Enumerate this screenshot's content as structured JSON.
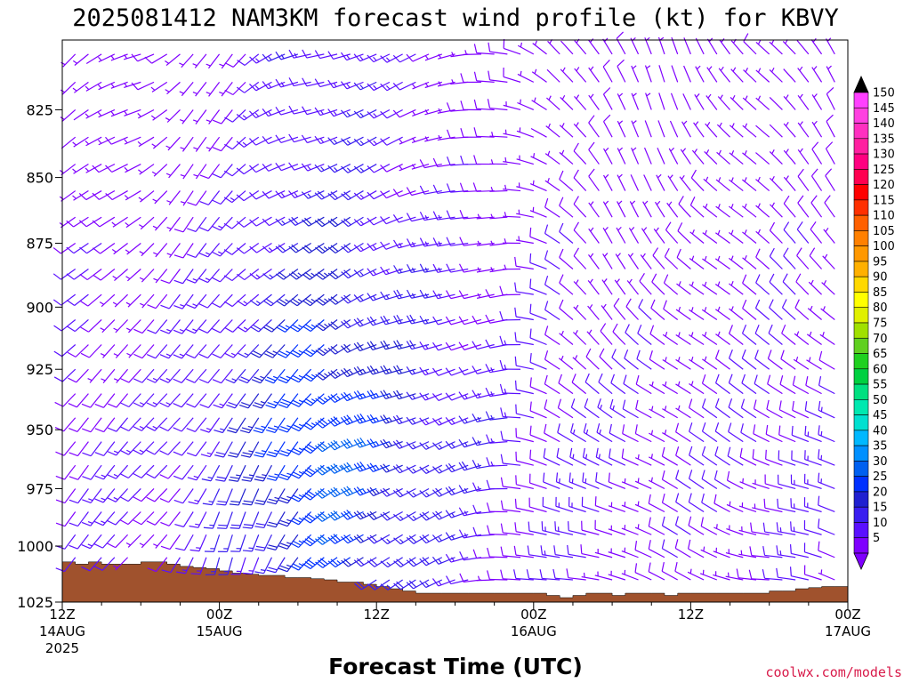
{
  "chart_data": {
    "type": "wind-barb",
    "title": "2025081412 NAM3KM forecast wind profile (kt) for KBVY",
    "xlabel": "Forecast Time (UTC)",
    "ylabel": "",
    "credit": "coolwx.com/models",
    "y_axis": {
      "label": "",
      "scale": "log-pressure",
      "range_hPa": [
        800,
        1025
      ],
      "ticks": [
        825,
        850,
        875,
        900,
        925,
        950,
        975,
        1000,
        1025
      ]
    },
    "x_axis": {
      "start": "2025-08-14T12:00Z",
      "end": "2025-08-17T00:00Z",
      "step_hours": 1,
      "ticks": [
        {
          "hour": 0,
          "label": "12Z",
          "line2": "14AUG",
          "line3": "2025"
        },
        {
          "hour": 12,
          "label": "00Z",
          "line2": "15AUG",
          "line3": ""
        },
        {
          "hour": 24,
          "label": "12Z",
          "line2": "",
          "line3": ""
        },
        {
          "hour": 36,
          "label": "00Z",
          "line2": "16AUG",
          "line3": ""
        },
        {
          "hour": 48,
          "label": "12Z",
          "line2": "",
          "line3": ""
        },
        {
          "hour": 60,
          "label": "00Z",
          "line2": "17AUG",
          "line3": ""
        }
      ]
    },
    "levels_hPa": [
      805,
      815,
      825,
      835,
      845,
      855,
      865,
      875,
      885,
      895,
      905,
      915,
      925,
      935,
      945,
      955,
      965,
      975,
      985,
      995,
      1005,
      1015,
      1025
    ],
    "surface_pressure": {
      "label": "terrain",
      "color": "#a0522d",
      "keyframes_by_hour": [
        [
          0,
          1007
        ],
        [
          1,
          1008
        ],
        [
          2,
          1007
        ],
        [
          3,
          1008
        ],
        [
          5,
          1008
        ],
        [
          6,
          1007
        ],
        [
          7,
          1007
        ],
        [
          8,
          1008
        ],
        [
          9,
          1009
        ],
        [
          11,
          1010
        ],
        [
          12,
          1011
        ],
        [
          13,
          1012
        ],
        [
          15,
          1013
        ],
        [
          16,
          1013
        ],
        [
          17,
          1014
        ],
        [
          18,
          1014
        ],
        [
          20,
          1015
        ],
        [
          21,
          1016
        ],
        [
          22,
          1016
        ],
        [
          23,
          1017
        ],
        [
          24,
          1018
        ],
        [
          25,
          1019
        ],
        [
          26,
          1020
        ],
        [
          27,
          1021
        ],
        [
          28,
          1021
        ],
        [
          36,
          1021
        ],
        [
          37,
          1022
        ],
        [
          38,
          1023
        ],
        [
          39,
          1022
        ],
        [
          40,
          1021
        ],
        [
          41,
          1021
        ],
        [
          42,
          1022
        ],
        [
          43,
          1021
        ],
        [
          44,
          1021
        ],
        [
          45,
          1021
        ],
        [
          46,
          1022
        ],
        [
          47,
          1021
        ],
        [
          48,
          1021
        ],
        [
          50,
          1021
        ],
        [
          51,
          1021
        ],
        [
          52,
          1021
        ],
        [
          53,
          1021
        ],
        [
          54,
          1020
        ],
        [
          55,
          1020
        ],
        [
          56,
          1019
        ],
        [
          58,
          1018
        ],
        [
          60,
          1018
        ]
      ]
    },
    "wind_barbs": {
      "units": "kt",
      "direction_keyframes_by_hour": [
        [
          0,
          225
        ],
        [
          6,
          245
        ],
        [
          10,
          225
        ],
        [
          13,
          225
        ],
        [
          16,
          240
        ],
        [
          19,
          250
        ],
        [
          22,
          250
        ],
        [
          26,
          250
        ],
        [
          30,
          255
        ],
        [
          34,
          270
        ],
        [
          38,
          320
        ],
        [
          42,
          335
        ],
        [
          46,
          335
        ],
        [
          50,
          325
        ],
        [
          54,
          320
        ],
        [
          58,
          325
        ],
        [
          60,
          330
        ]
      ],
      "low_level_keyframes": [
        [
          0,
          225
        ],
        [
          8,
          210
        ],
        [
          12,
          200
        ],
        [
          18,
          210
        ],
        [
          24,
          240
        ],
        [
          30,
          250
        ],
        [
          36,
          270
        ],
        [
          42,
          290
        ],
        [
          48,
          290
        ],
        [
          54,
          280
        ],
        [
          60,
          290
        ]
      ],
      "speed_keyframes_by_hour": [
        [
          0,
          12
        ],
        [
          3,
          12
        ],
        [
          6,
          10
        ],
        [
          9,
          13
        ],
        [
          12,
          16
        ],
        [
          15,
          22
        ],
        [
          18,
          30
        ],
        [
          21,
          33
        ],
        [
          24,
          28
        ],
        [
          27,
          22
        ],
        [
          30,
          17
        ],
        [
          33,
          14
        ],
        [
          36,
          12
        ],
        [
          40,
          12
        ],
        [
          44,
          10
        ],
        [
          48,
          9
        ],
        [
          52,
          10
        ],
        [
          56,
          12
        ],
        [
          60,
          12
        ]
      ],
      "max_speed_kt": 35,
      "max_at": {
        "hour": 19,
        "pressure_hPa": 960
      }
    },
    "colorbar": {
      "label": "kt",
      "values": [
        5,
        10,
        15,
        20,
        25,
        30,
        35,
        40,
        45,
        50,
        55,
        60,
        65,
        70,
        75,
        80,
        85,
        90,
        95,
        100,
        105,
        110,
        115,
        120,
        125,
        130,
        135,
        140,
        145,
        150
      ],
      "colors": [
        "#7f00ff",
        "#5a10ff",
        "#3a1ef0",
        "#2020d0",
        "#0030ff",
        "#0060f0",
        "#0090ff",
        "#00b8ff",
        "#00e0d0",
        "#00e8b0",
        "#00e080",
        "#00d040",
        "#20d020",
        "#60d020",
        "#a0e000",
        "#e0f000",
        "#ffff00",
        "#ffd800",
        "#ffb000",
        "#ff9800",
        "#ff8000",
        "#ff6000",
        "#ff3000",
        "#ff0000",
        "#ff0050",
        "#ff0080",
        "#ff20a0",
        "#ff30c0",
        "#ff40e0",
        "#ff40ff"
      ],
      "cap_top": "#000000",
      "cap_bottom": "#7f00ff"
    }
  }
}
